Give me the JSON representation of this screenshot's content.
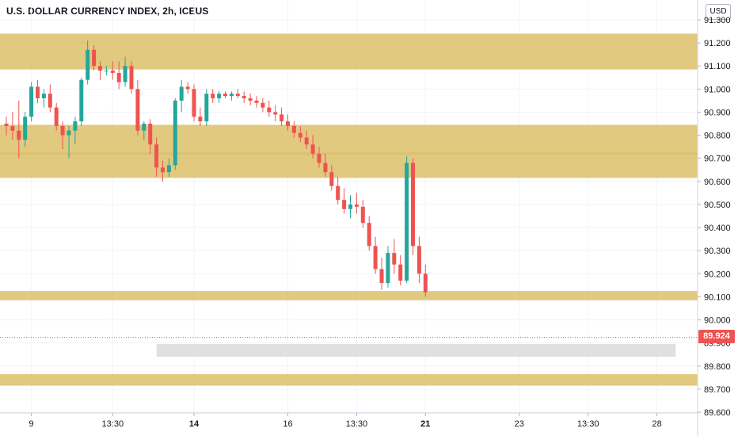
{
  "header": {
    "title": "U.S. DOLLAR CURRENCY INDEX, 2h, ICEUS"
  },
  "price_scale": {
    "currency_button": "USD",
    "last_price_label": "89.924"
  },
  "colors": {
    "zone_fill": "#dcc06a",
    "neutral_zone_fill": "#e0e0e0",
    "up_candle": "#26a69a",
    "down_candle": "#ef5350",
    "last_price": "#ef5350",
    "grid": "#f0f3fa",
    "axis_text": "#131722"
  },
  "chart_data": {
    "type": "candlestick",
    "title": "U.S. DOLLAR CURRENCY INDEX, 2h, ICEUS",
    "ylim": [
      89.6,
      91.3
    ],
    "y_ticks": [
      "91.300",
      "91.200",
      "91.100",
      "91.000",
      "90.900",
      "90.800",
      "90.700",
      "90.600",
      "90.500",
      "90.400",
      "90.300",
      "90.200",
      "90.100",
      "90.000",
      "89.900",
      "89.800",
      "89.700",
      "89.600"
    ],
    "x_ticks": [
      {
        "label": "9",
        "index": 4,
        "bold": false
      },
      {
        "label": "13:30",
        "index": 17,
        "bold": false
      },
      {
        "label": "14",
        "index": 30,
        "bold": true
      },
      {
        "label": "16",
        "index": 45,
        "bold": false
      },
      {
        "label": "13:30",
        "index": 56,
        "bold": false
      },
      {
        "label": "21",
        "index": 67,
        "bold": true
      },
      {
        "label": "23",
        "index": 82,
        "bold": false
      },
      {
        "label": "13:30",
        "index": 93,
        "bold": false
      },
      {
        "label": "28",
        "index": 104,
        "bold": false
      }
    ],
    "last_price": 89.924,
    "zones": [
      {
        "from": 91.085,
        "to": 91.24,
        "kind": "resistance"
      },
      {
        "from": 90.715,
        "to": 90.845,
        "kind": "resistance"
      },
      {
        "from": 90.615,
        "to": 90.725,
        "kind": "resistance"
      },
      {
        "from": 90.085,
        "to": 90.125,
        "kind": "resistance"
      },
      {
        "from": 89.715,
        "to": 89.765,
        "kind": "support"
      }
    ],
    "neutral_zone": {
      "from": 89.84,
      "to": 89.895,
      "start_index": 24,
      "end_index": 107
    },
    "candles": [
      [
        90.85,
        90.88,
        90.8,
        90.84
      ],
      [
        90.84,
        90.9,
        90.78,
        90.82
      ],
      [
        90.82,
        90.95,
        90.7,
        90.78
      ],
      [
        90.78,
        90.9,
        90.75,
        90.88
      ],
      [
        90.88,
        91.03,
        90.86,
        91.01
      ],
      [
        91.01,
        91.04,
        90.94,
        90.96
      ],
      [
        90.96,
        91.0,
        90.92,
        90.98
      ],
      [
        90.98,
        91.02,
        90.9,
        90.92
      ],
      [
        90.92,
        90.94,
        90.82,
        90.84
      ],
      [
        90.84,
        90.86,
        90.74,
        90.8
      ],
      [
        90.8,
        90.84,
        90.7,
        90.82
      ],
      [
        90.82,
        90.88,
        90.76,
        90.86
      ],
      [
        90.86,
        91.05,
        90.84,
        91.04
      ],
      [
        91.04,
        91.21,
        91.02,
        91.17
      ],
      [
        91.17,
        91.19,
        91.08,
        91.1
      ],
      [
        91.1,
        91.12,
        91.04,
        91.08
      ],
      [
        91.08,
        91.1,
        91.06,
        91.08
      ],
      [
        91.08,
        91.12,
        91.04,
        91.07
      ],
      [
        91.07,
        91.12,
        91.0,
        91.03
      ],
      [
        91.03,
        91.14,
        91.01,
        91.1
      ],
      [
        91.1,
        91.12,
        90.98,
        91.0
      ],
      [
        91.0,
        91.04,
        90.8,
        90.82
      ],
      [
        90.82,
        90.86,
        90.78,
        90.85
      ],
      [
        90.85,
        90.87,
        90.72,
        90.76
      ],
      [
        90.76,
        90.79,
        90.62,
        90.66
      ],
      [
        90.66,
        90.69,
        90.6,
        90.64
      ],
      [
        90.64,
        90.7,
        90.62,
        90.67
      ],
      [
        90.67,
        90.96,
        90.65,
        90.95
      ],
      [
        90.95,
        91.04,
        90.9,
        91.01
      ],
      [
        91.01,
        91.03,
        90.98,
        91.0
      ],
      [
        91.0,
        91.02,
        90.86,
        90.88
      ],
      [
        90.88,
        90.92,
        90.84,
        90.86
      ],
      [
        90.86,
        91.0,
        90.84,
        90.98
      ],
      [
        90.98,
        91.0,
        90.94,
        90.96
      ],
      [
        90.96,
        90.99,
        90.94,
        90.98
      ],
      [
        90.98,
        90.99,
        90.96,
        90.97
      ],
      [
        90.97,
        90.99,
        90.95,
        90.98
      ],
      [
        90.98,
        91.0,
        90.96,
        90.97
      ],
      [
        90.97,
        90.99,
        90.94,
        90.96
      ],
      [
        90.96,
        90.98,
        90.93,
        90.95
      ],
      [
        90.95,
        90.97,
        90.92,
        90.94
      ],
      [
        90.94,
        90.96,
        90.9,
        90.92
      ],
      [
        90.92,
        90.95,
        90.88,
        90.9
      ],
      [
        90.9,
        90.93,
        90.86,
        90.89
      ],
      [
        90.89,
        90.92,
        90.84,
        90.86
      ],
      [
        90.86,
        90.89,
        90.82,
        90.84
      ],
      [
        90.84,
        90.86,
        90.79,
        90.81
      ],
      [
        90.81,
        90.84,
        90.77,
        90.79
      ],
      [
        90.79,
        90.82,
        90.74,
        90.76
      ],
      [
        90.76,
        90.8,
        90.7,
        90.72
      ],
      [
        90.72,
        90.75,
        90.66,
        90.68
      ],
      [
        90.68,
        90.72,
        90.62,
        90.64
      ],
      [
        90.64,
        90.67,
        90.56,
        90.58
      ],
      [
        90.58,
        90.62,
        90.5,
        90.52
      ],
      [
        90.52,
        90.57,
        90.46,
        90.48
      ],
      [
        90.48,
        90.54,
        90.44,
        90.5
      ],
      [
        90.5,
        90.55,
        90.46,
        90.49
      ],
      [
        90.49,
        90.52,
        90.4,
        90.42
      ],
      [
        90.42,
        90.45,
        90.3,
        90.32
      ],
      [
        90.32,
        90.36,
        90.2,
        90.22
      ],
      [
        90.22,
        90.27,
        90.13,
        90.16
      ],
      [
        90.16,
        90.32,
        90.14,
        90.29
      ],
      [
        90.29,
        90.35,
        90.2,
        90.24
      ],
      [
        90.24,
        90.28,
        90.15,
        90.17
      ],
      [
        90.17,
        90.71,
        90.16,
        90.68
      ],
      [
        90.68,
        90.7,
        90.28,
        90.32
      ],
      [
        90.32,
        90.36,
        90.16,
        90.2
      ],
      [
        90.2,
        90.24,
        90.1,
        90.12
      ]
    ]
  }
}
